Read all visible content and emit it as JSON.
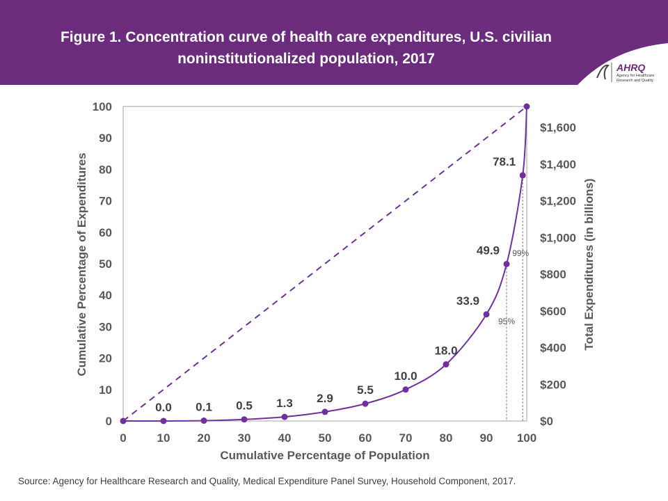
{
  "header": {
    "title": "Figure 1. Concentration curve of health care expenditures, U.S. civilian noninstitutionalized population, 2017",
    "logo_text": "AHRQ Agency for Healthcare Research and Quality",
    "banner_color": "#6B2C7E"
  },
  "source": "Source: Agency for Healthcare Research and Quality, Medical Expenditure Panel Survey, Household Component, 2017.",
  "chart_data": {
    "type": "line",
    "xlabel": "Cumulative Percentage of Population",
    "ylabel": "Cumulative Percentage of Expenditures",
    "y2label": "Total Expenditures (in billions)",
    "xlim": [
      0,
      100
    ],
    "ylim": [
      0,
      100
    ],
    "x_ticks": [
      "0",
      "10",
      "20",
      "30",
      "40",
      "50",
      "60",
      "70",
      "80",
      "90",
      "100"
    ],
    "y_ticks": [
      "0",
      "10",
      "20",
      "30",
      "40",
      "50",
      "60",
      "70",
      "80",
      "90",
      "100"
    ],
    "y2_ticks": [
      "$0",
      "$200",
      "$400",
      "$600",
      "$800",
      "$1,000",
      "$1,200",
      "$1,400",
      "$1,600"
    ],
    "y2_values": [
      0,
      200,
      400,
      600,
      800,
      1000,
      1200,
      1400,
      1600
    ],
    "y2_max": 1714,
    "x": [
      0,
      10,
      20,
      30,
      40,
      50,
      60,
      70,
      80,
      90,
      95,
      99,
      100
    ],
    "y": [
      0,
      0.0,
      0.1,
      0.5,
      1.3,
      2.9,
      5.5,
      10.0,
      18.0,
      33.9,
      49.9,
      78.1,
      100
    ],
    "labels": [
      "",
      "0.0",
      "0.1",
      "0.5",
      "1.3",
      "2.9",
      "5.5",
      "10.0",
      "18.0",
      "33.9",
      "49.9",
      "78.1",
      ""
    ],
    "equality_line": {
      "style": "dashed",
      "from": [
        0,
        0
      ],
      "to": [
        100,
        100
      ]
    },
    "reference_lines": [
      {
        "x": 95,
        "label": "95%"
      },
      {
        "x": 99,
        "label": "99%"
      }
    ],
    "color": "#7030A0",
    "grid": false
  }
}
